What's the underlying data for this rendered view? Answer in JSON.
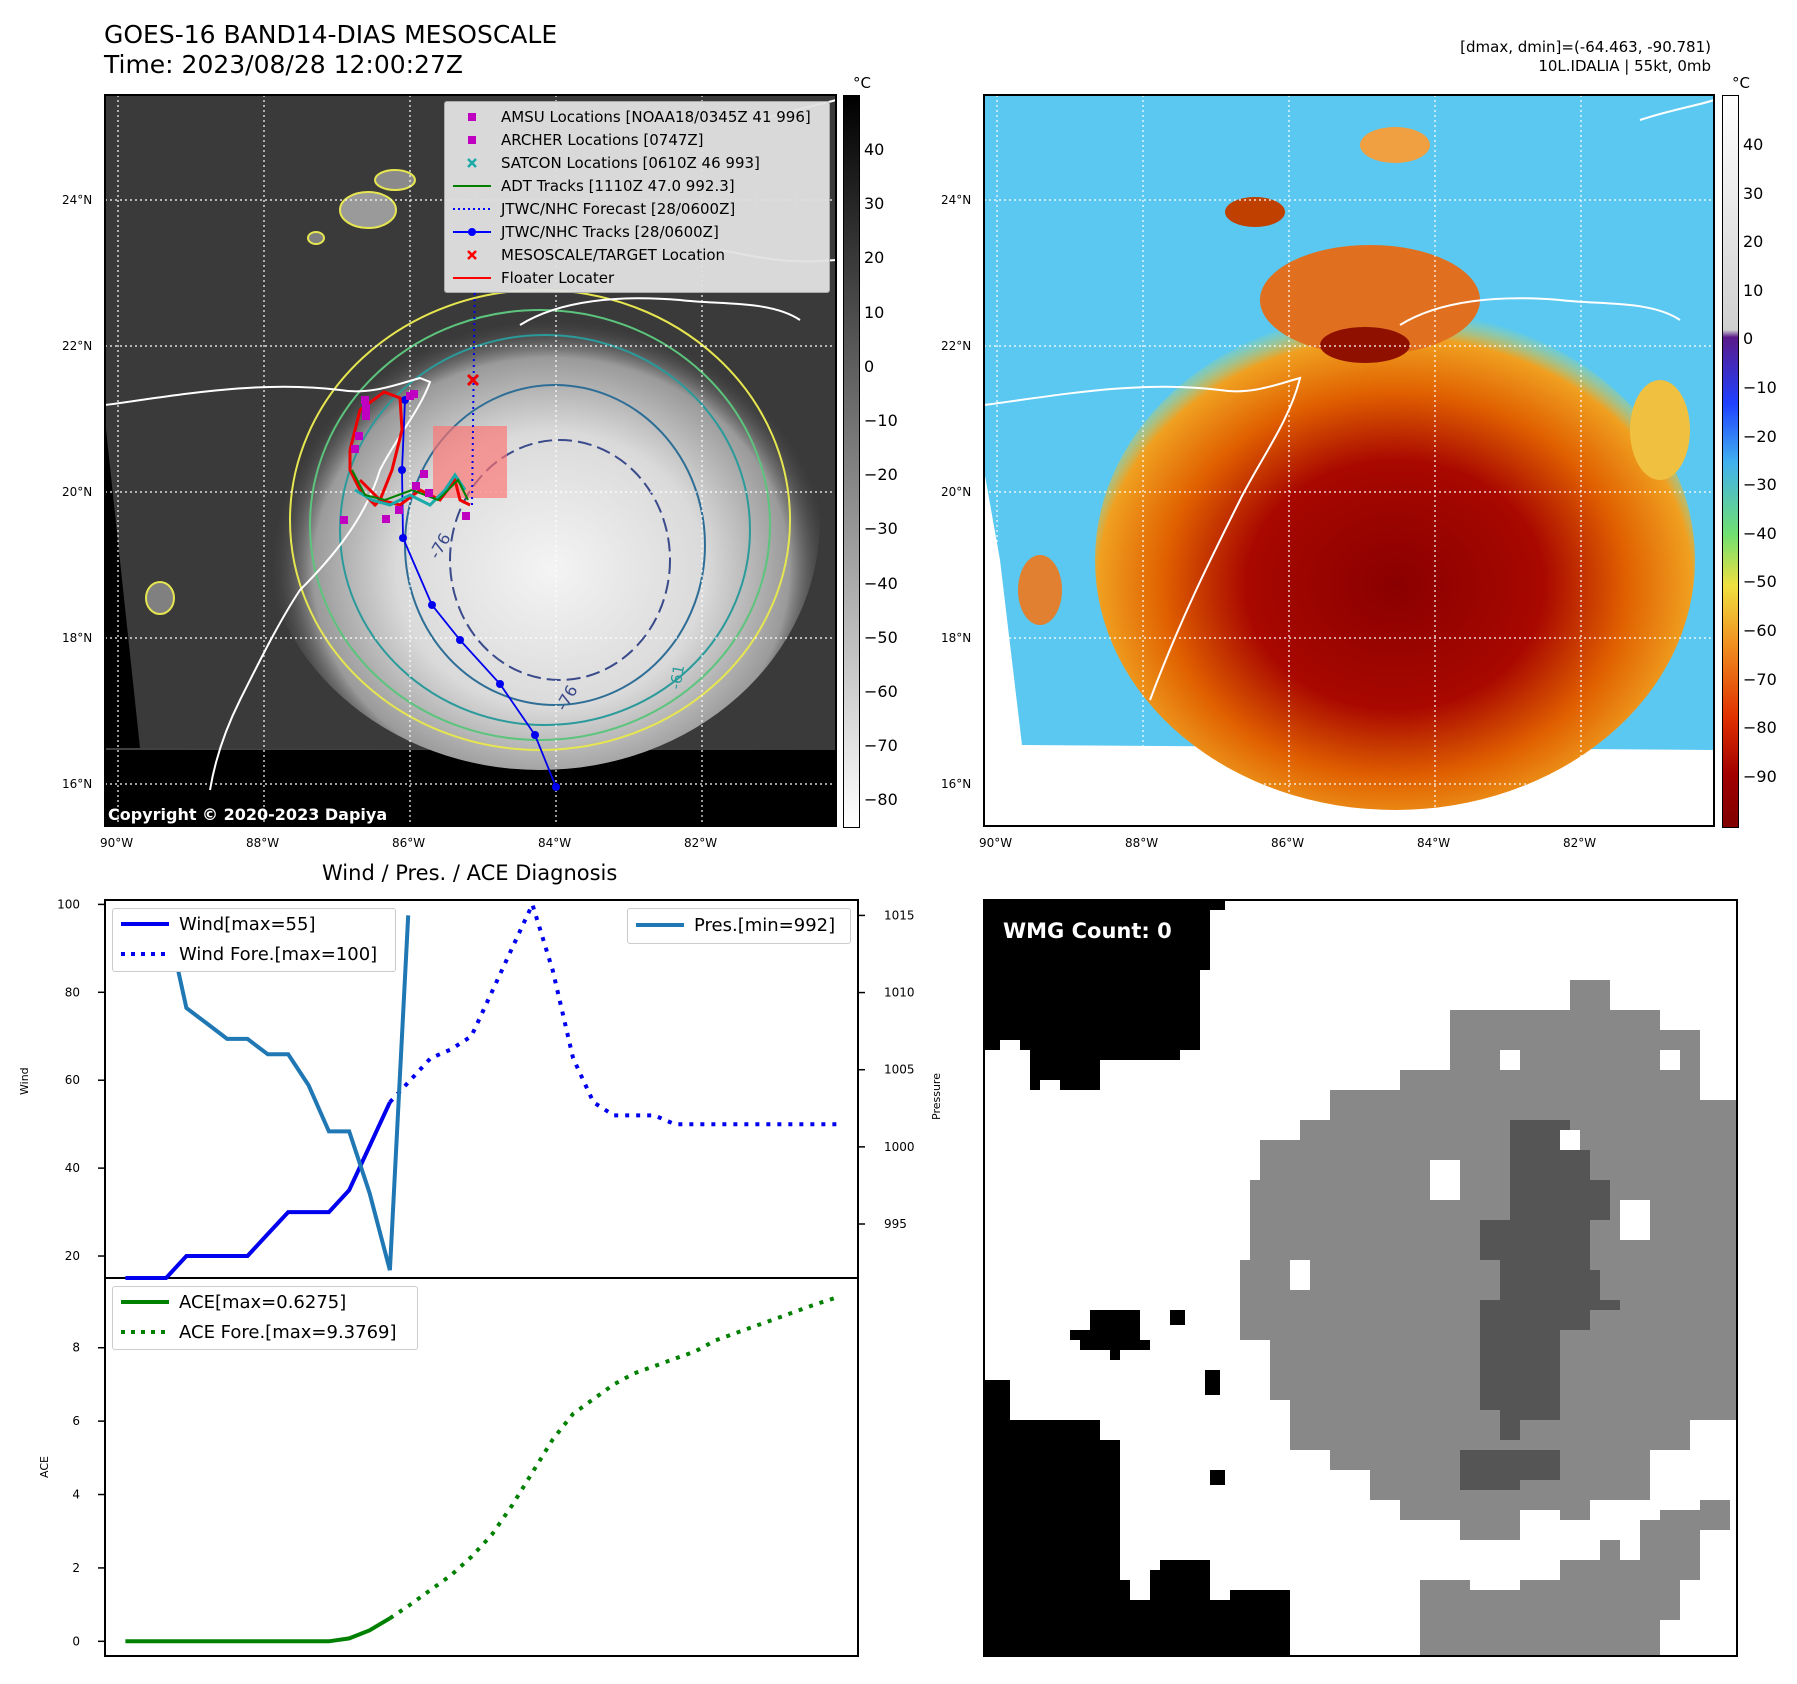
{
  "header": {
    "title_line1": "GOES-16 BAND14-DIAS MESOSCALE",
    "title_line2": "Time: 2023/08/28 12:00:27Z",
    "right_line1": "[dmax, dmin]=(-64.463, -90.781)",
    "right_line2": "10L.IDALIA | 55kt, 0mb"
  },
  "maps": {
    "lat_labels": [
      "24°N",
      "22°N",
      "20°N",
      "18°N",
      "16°N"
    ],
    "lon_labels": [
      "90°W",
      "88°W",
      "86°W",
      "84°W",
      "82°W"
    ],
    "copyright": "Copyright © 2020-2023 Dapiya",
    "unit": "°C",
    "gray_colorbar_ticks": [
      "40",
      "30",
      "20",
      "10",
      "0",
      "−10",
      "−20",
      "−30",
      "−40",
      "−50",
      "−60",
      "−70",
      "−80"
    ],
    "color_colorbar_ticks": [
      "40",
      "30",
      "20",
      "10",
      "0",
      "−10",
      "−20",
      "−30",
      "−40",
      "−50",
      "−60",
      "−70",
      "−80",
      "−90"
    ],
    "contour_labels": [
      "-76",
      "-76",
      "-61"
    ],
    "legend": [
      {
        "label": "AMSU Locations [NOAA18/0345Z 41 996]",
        "color": "#c000c0",
        "marker": "square"
      },
      {
        "label": "ARCHER Locations [0747Z]",
        "color": "#c000c0",
        "marker": "square"
      },
      {
        "label": "SATCON Locations [0610Z 46 993]",
        "color": "#1aaaaa",
        "marker": "x"
      },
      {
        "label": "ADT Tracks [1110Z 47.0 992.3]",
        "color": "#008000",
        "marker": "line"
      },
      {
        "label": "JTWC/NHC Forecast [28/0600Z]",
        "color": "#0000ff",
        "marker": "dotted"
      },
      {
        "label": "JTWC/NHC Tracks [28/0600Z]",
        "color": "#0000ff",
        "marker": "line-dot"
      },
      {
        "label": "MESOSCALE/TARGET Location",
        "color": "#ff0000",
        "marker": "x"
      },
      {
        "label": "Floater Locater",
        "color": "#ff0000",
        "marker": "line"
      }
    ]
  },
  "diagnosis": {
    "title": "Wind / Pres. / ACE Diagnosis",
    "wind_ylabel": "Wind",
    "pres_ylabel": "Pressure",
    "ace_ylabel": "ACE",
    "legend_wind": "Wind[max=55]",
    "legend_wind_fore": "Wind Fore.[max=100]",
    "legend_pres": "Pres.[min=992]",
    "legend_ace": "ACE[max=0.6275]",
    "legend_ace_fore": "ACE Fore.[max=9.3769]"
  },
  "wmg": {
    "label": "WMG Count: 0"
  },
  "chart_data": [
    {
      "type": "line",
      "title": "Wind / Pres. / ACE Diagnosis",
      "ylabel": "Wind",
      "ylim": [
        15,
        101
      ],
      "y_ticks": [
        20,
        40,
        60,
        80,
        100
      ],
      "series": [
        {
          "name": "Wind[max=55]",
          "style": "solid",
          "color": "#0000ee",
          "x": [
            0,
            1,
            2,
            3,
            4,
            5,
            6,
            7,
            8,
            9,
            10,
            11,
            12,
            13
          ],
          "values": [
            15,
            15,
            15,
            20,
            20,
            20,
            20,
            25,
            30,
            30,
            30,
            35,
            45,
            55
          ]
        },
        {
          "name": "Wind Fore.[max=100]",
          "style": "dotted",
          "color": "#0000ee",
          "x": [
            13,
            14,
            15,
            16,
            17,
            18,
            19,
            20,
            21,
            22,
            23,
            24,
            25,
            26,
            27,
            28,
            29,
            30,
            31,
            32,
            33,
            34,
            35
          ],
          "values": [
            55,
            60,
            65,
            67,
            70,
            80,
            90,
            100,
            85,
            65,
            55,
            52,
            52,
            52,
            50,
            50,
            50,
            50,
            50,
            50,
            50,
            50,
            50
          ]
        }
      ],
      "secondary_axis": {
        "ylabel": "Pressure",
        "ylim": [
          991.5,
          1016
        ],
        "y_ticks": [
          995,
          1000,
          1005,
          1010,
          1015
        ],
        "series": [
          {
            "name": "Pres.[min=992]",
            "color": "#1f77b4",
            "x": [
              0,
              1,
              2,
              3,
              4,
              5,
              6,
              7,
              8,
              9,
              10,
              11,
              12,
              13
            ],
            "values": [
              1015,
              1015,
              1015,
              1009,
              1008,
              1007,
              1007,
              1006,
              1006,
              1004,
              1001,
              1001,
              997,
              992
            ]
          },
          {
            "name": "",
            "color": "#1f77b4",
            "x": [
              13,
              13.9
            ],
            "values": [
              992,
              1015
            ]
          }
        ]
      }
    },
    {
      "type": "line",
      "ylabel": "ACE",
      "ylim": [
        -0.4,
        9.9
      ],
      "y_ticks": [
        0,
        2,
        4,
        6,
        8
      ],
      "series": [
        {
          "name": "ACE[max=0.6275]",
          "style": "solid",
          "color": "#008000",
          "x": [
            0,
            1,
            2,
            3,
            4,
            5,
            6,
            7,
            8,
            9,
            10,
            11,
            12,
            13
          ],
          "values": [
            0,
            0,
            0,
            0,
            0,
            0,
            0,
            0,
            0,
            0,
            0,
            0.08,
            0.3,
            0.6275
          ]
        },
        {
          "name": "ACE Fore.[max=9.3769]",
          "style": "dotted",
          "color": "#008000",
          "x": [
            13,
            14,
            15,
            16,
            17,
            18,
            19,
            20,
            21,
            22,
            23,
            24,
            25,
            26,
            27,
            28,
            29,
            30,
            31,
            32,
            33,
            34,
            35
          ],
          "values": [
            0.6275,
            1.0,
            1.4,
            1.8,
            2.3,
            2.9,
            3.7,
            4.6,
            5.5,
            6.2,
            6.6,
            7.0,
            7.3,
            7.5,
            7.7,
            7.9,
            8.2,
            8.4,
            8.6,
            8.8,
            9.0,
            9.2,
            9.3769
          ]
        }
      ]
    }
  ]
}
